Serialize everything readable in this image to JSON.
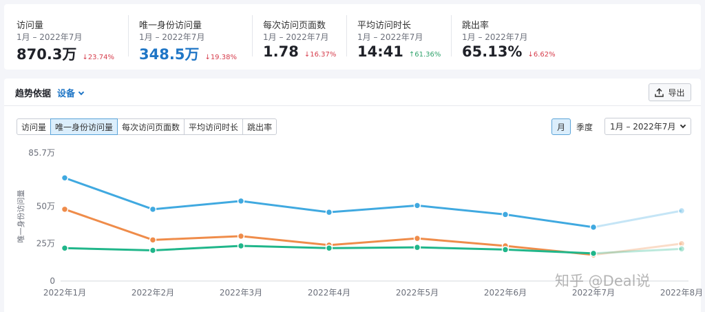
{
  "metrics": [
    {
      "title": "访问量",
      "period": "1月 – 2022年7月",
      "value": "870.3万",
      "change": "↓23.74%",
      "direction": "down",
      "highlight": false
    },
    {
      "title": "唯一身份访问量",
      "period": "1月 – 2022年7月",
      "value": "348.5万",
      "change": "↓19.38%",
      "direction": "down",
      "highlight": true
    },
    {
      "title": "每次访问页面数",
      "period": "1月 – 2022年7月",
      "value": "1.78",
      "change": "↓16.37%",
      "direction": "down",
      "highlight": false
    },
    {
      "title": "平均访问时长",
      "period": "1月 – 2022年7月",
      "value": "14:41",
      "change": "↑61.36%",
      "direction": "up",
      "highlight": false
    },
    {
      "title": "跳出率",
      "period": "1月 – 2022年7月",
      "value": "65.13%",
      "change": "↓6.62%",
      "direction": "down",
      "highlight": false
    }
  ],
  "panel": {
    "trend_label": "趋势依据",
    "device_label": "设备",
    "export_label": "导出",
    "tabs": [
      "访问量",
      "唯一身份访问量",
      "每次访问页面数",
      "平均访问时长",
      "跳出率"
    ],
    "active_tab": 1,
    "granularity": [
      "月",
      "季度"
    ],
    "active_granularity": 0,
    "date_range": "1月 – 2022年7月"
  },
  "colors": {
    "accent": "#1f76c6",
    "series_blue": "#40a9e0",
    "series_orange": "#ef8c4a",
    "series_green": "#20b68a"
  },
  "chart_data": {
    "type": "line",
    "ylabel": "唯一身份访问量",
    "y_ticks": [
      "0",
      "25万",
      "50万",
      "85.7万"
    ],
    "y_tick_values": [
      0,
      25,
      50,
      85.7
    ],
    "ylim": [
      0,
      85.7
    ],
    "categories": [
      "2022年1月",
      "2022年2月",
      "2022年3月",
      "2022年4月",
      "2022年5月",
      "2022年6月",
      "2022年7月",
      "2022年8月"
    ],
    "projected_from_index": 6,
    "series": [
      {
        "color": "#40a9e0",
        "values": [
          69,
          48,
          53.5,
          46,
          50.5,
          44.5,
          36,
          47
        ]
      },
      {
        "color": "#ef8c4a",
        "values": [
          48,
          27.5,
          30,
          24,
          28.5,
          23.5,
          17.5,
          25
        ]
      },
      {
        "color": "#20b68a",
        "values": [
          22,
          20.5,
          23.5,
          22,
          22.5,
          21,
          18.5,
          21.5
        ]
      }
    ],
    "grid": false
  },
  "watermark": "知乎 @Deal说"
}
